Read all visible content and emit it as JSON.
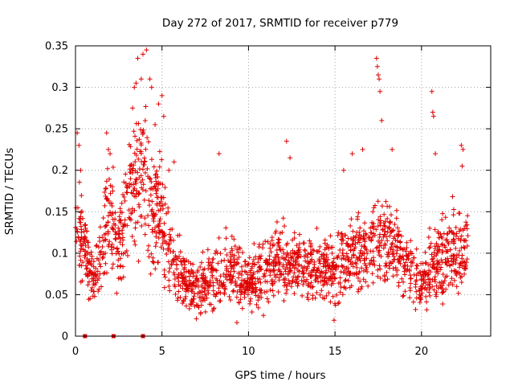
{
  "chart_data": {
    "type": "scatter",
    "title": "Day 272 of 2017, SRMTID for receiver p779",
    "xlabel": "GPS time / hours",
    "ylabel": "SRMTID / TECUs",
    "xlim": [
      0,
      24
    ],
    "ylim": [
      0,
      0.35
    ],
    "xticks": [
      "0",
      "5",
      "10",
      "15",
      "20"
    ],
    "yticks": [
      "0",
      "0.05",
      "0.1",
      "0.15",
      "0.2",
      "0.25",
      "0.3",
      "0.35"
    ],
    "grid": true,
    "marker": "+",
    "color": "#e00000",
    "zero_markers_x": [
      0.55,
      2.2,
      3.9
    ],
    "density_profile": [
      {
        "x": 0.0,
        "mean": 0.14,
        "spread": 0.05
      },
      {
        "x": 0.5,
        "mean": 0.11,
        "spread": 0.04
      },
      {
        "x": 1.0,
        "mean": 0.065,
        "spread": 0.03
      },
      {
        "x": 1.5,
        "mean": 0.1,
        "spread": 0.04
      },
      {
        "x": 2.0,
        "mean": 0.15,
        "spread": 0.05
      },
      {
        "x": 2.5,
        "mean": 0.1,
        "spread": 0.04
      },
      {
        "x": 3.0,
        "mean": 0.16,
        "spread": 0.06
      },
      {
        "x": 3.5,
        "mean": 0.2,
        "spread": 0.08
      },
      {
        "x": 4.0,
        "mean": 0.2,
        "spread": 0.08
      },
      {
        "x": 4.5,
        "mean": 0.14,
        "spread": 0.06
      },
      {
        "x": 5.0,
        "mean": 0.15,
        "spread": 0.06
      },
      {
        "x": 5.5,
        "mean": 0.1,
        "spread": 0.04
      },
      {
        "x": 6.0,
        "mean": 0.075,
        "spread": 0.03
      },
      {
        "x": 7.0,
        "mean": 0.055,
        "spread": 0.025
      },
      {
        "x": 8.0,
        "mean": 0.07,
        "spread": 0.035
      },
      {
        "x": 9.0,
        "mean": 0.08,
        "spread": 0.035
      },
      {
        "x": 10.0,
        "mean": 0.065,
        "spread": 0.03
      },
      {
        "x": 11.0,
        "mean": 0.08,
        "spread": 0.035
      },
      {
        "x": 12.0,
        "mean": 0.09,
        "spread": 0.035
      },
      {
        "x": 13.0,
        "mean": 0.085,
        "spread": 0.03
      },
      {
        "x": 14.0,
        "mean": 0.085,
        "spread": 0.035
      },
      {
        "x": 15.0,
        "mean": 0.08,
        "spread": 0.04
      },
      {
        "x": 16.0,
        "mean": 0.1,
        "spread": 0.04
      },
      {
        "x": 17.0,
        "mean": 0.11,
        "spread": 0.045
      },
      {
        "x": 18.0,
        "mean": 0.12,
        "spread": 0.05
      },
      {
        "x": 19.0,
        "mean": 0.09,
        "spread": 0.035
      },
      {
        "x": 20.0,
        "mean": 0.065,
        "spread": 0.025
      },
      {
        "x": 21.0,
        "mean": 0.09,
        "spread": 0.04
      },
      {
        "x": 22.0,
        "mean": 0.1,
        "spread": 0.045
      },
      {
        "x": 22.7,
        "mean": 0.11,
        "spread": 0.045
      }
    ],
    "outliers": [
      [
        0.1,
        0.245
      ],
      [
        0.2,
        0.23
      ],
      [
        0.3,
        0.2
      ],
      [
        1.8,
        0.245
      ],
      [
        1.9,
        0.225
      ],
      [
        2.0,
        0.22
      ],
      [
        3.3,
        0.275
      ],
      [
        3.4,
        0.3
      ],
      [
        3.5,
        0.305
      ],
      [
        3.6,
        0.335
      ],
      [
        3.8,
        0.31
      ],
      [
        3.9,
        0.34
      ],
      [
        4.1,
        0.345
      ],
      [
        4.3,
        0.31
      ],
      [
        4.4,
        0.3
      ],
      [
        4.6,
        0.255
      ],
      [
        4.8,
        0.28
      ],
      [
        5.0,
        0.29
      ],
      [
        5.1,
        0.265
      ],
      [
        5.4,
        0.2
      ],
      [
        5.7,
        0.21
      ],
      [
        8.3,
        0.22
      ],
      [
        12.2,
        0.235
      ],
      [
        12.4,
        0.215
      ],
      [
        15.5,
        0.2
      ],
      [
        16.0,
        0.22
      ],
      [
        16.6,
        0.225
      ],
      [
        17.4,
        0.335
      ],
      [
        17.45,
        0.325
      ],
      [
        17.5,
        0.315
      ],
      [
        17.55,
        0.31
      ],
      [
        17.6,
        0.295
      ],
      [
        17.7,
        0.26
      ],
      [
        18.3,
        0.225
      ],
      [
        20.6,
        0.295
      ],
      [
        20.65,
        0.27
      ],
      [
        20.7,
        0.265
      ],
      [
        20.8,
        0.22
      ],
      [
        22.3,
        0.23
      ],
      [
        22.4,
        0.225
      ],
      [
        22.35,
        0.205
      ]
    ]
  }
}
